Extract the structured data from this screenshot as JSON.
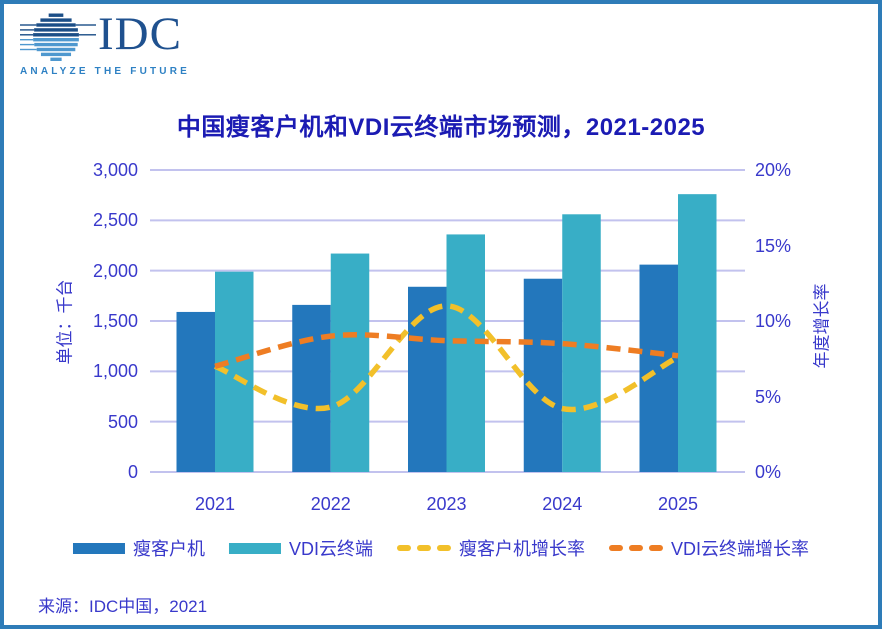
{
  "logo": {
    "name": "IDC",
    "tagline": "ANALYZE THE FUTURE"
  },
  "title": "中国瘦客户机和VDI云终端市场预测，2021-2025",
  "source": "来源：IDC中国，2021",
  "axes": {
    "left_title": "单位：千台",
    "left_ticks": [
      "3,000",
      "2,500",
      "2,000",
      "1,500",
      "1,000",
      "500",
      "0"
    ],
    "right_title": "年度增长率",
    "right_ticks": [
      "20%",
      "15%",
      "10%",
      "5%",
      "0%"
    ]
  },
  "chart_data": {
    "type": "combo",
    "title": "中国瘦客户机和VDI云终端市场预测，2021-2025",
    "categories": [
      "2021",
      "2022",
      "2023",
      "2024",
      "2025"
    ],
    "series": [
      {
        "key": "thin-client",
        "name": "瘦客户机",
        "type": "bar",
        "axis": "left",
        "color": "#2377bc",
        "values": [
          1590,
          1660,
          1840,
          1920,
          2060
        ]
      },
      {
        "key": "vdi-terminal",
        "name": "VDI云终端",
        "type": "bar",
        "axis": "left",
        "color": "#38aec6",
        "values": [
          1990,
          2170,
          2360,
          2560,
          2760
        ]
      },
      {
        "key": "thin-client-growth",
        "name": "瘦客户机增长率",
        "type": "line",
        "axis": "right",
        "color": "#f2c02a",
        "dashed": true,
        "values": [
          7.0,
          4.3,
          11.0,
          4.2,
          7.6
        ]
      },
      {
        "key": "vdi-terminal-growth",
        "name": "VDI云终端增长率",
        "type": "line",
        "axis": "right",
        "color": "#ee7d23",
        "dashed": true,
        "values": [
          7.0,
          9.0,
          8.7,
          8.5,
          7.7
        ]
      }
    ],
    "ylabel_left": "单位：千台",
    "ylabel_right": "年度增长率",
    "ylim_left": [
      0,
      3000
    ],
    "ylim_right": [
      0,
      20
    ],
    "grid": "horizontal",
    "gridline_color": "#c2c2ee",
    "legend_position": "bottom"
  },
  "colors": {
    "frame": "#2e7cb8",
    "title_text": "#1b1bb3",
    "axis_text": "#3939cb",
    "logo_navy": "#1b4e87",
    "logo_light_blue": "#4e98cf",
    "logo_text": "#1f518f",
    "logo_tagline": "#2e81c4"
  }
}
